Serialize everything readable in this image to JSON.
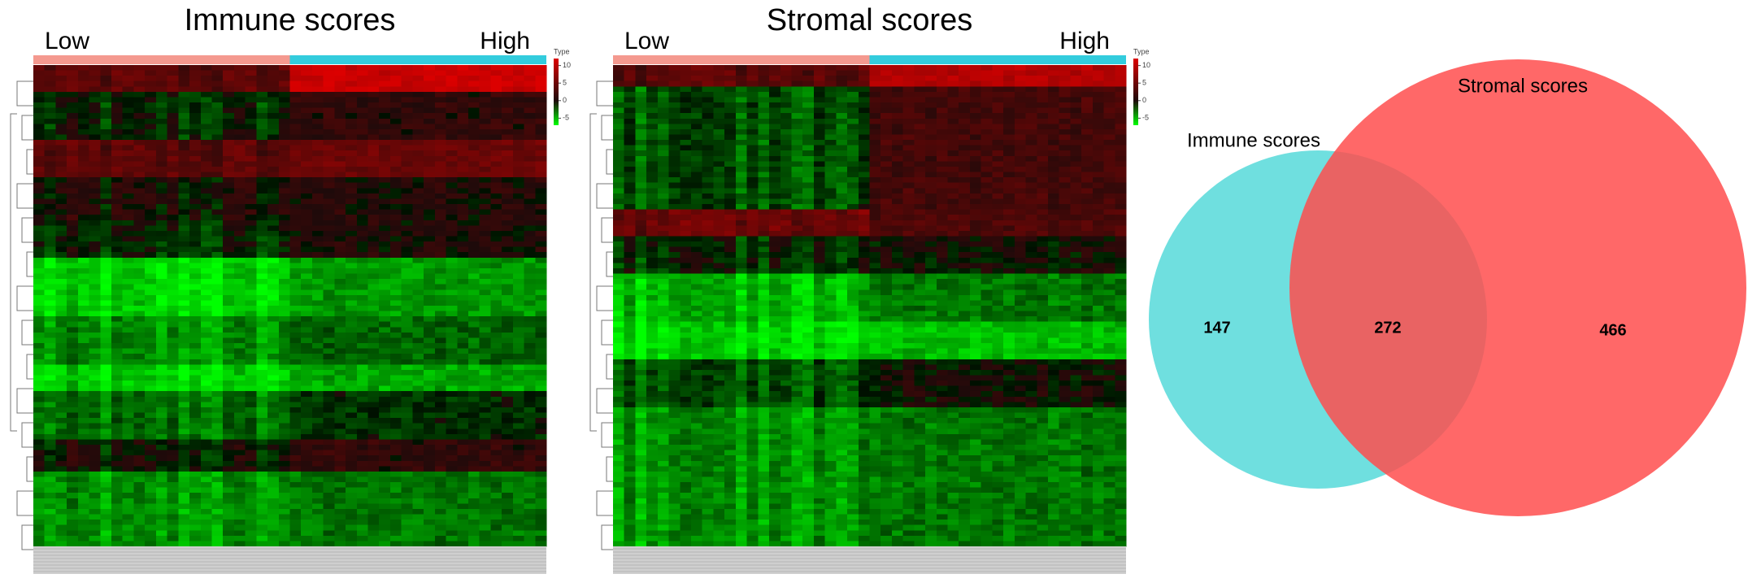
{
  "chart_data": [
    {
      "type": "heatmap",
      "title": "Immune scores",
      "groups": [
        {
          "name": "Low",
          "color": "#f4998f"
        },
        {
          "name": "High",
          "color": "#33ccdd"
        }
      ],
      "colorbar_label": "Type",
      "colorbar_lim": [
        -7,
        12
      ],
      "colorbar_ticks": [
        10,
        5,
        0,
        -5
      ]
    },
    {
      "type": "heatmap",
      "title": "Stromal scores",
      "groups": [
        {
          "name": "Low",
          "color": "#f4998f"
        },
        {
          "name": "High",
          "color": "#33ccdd"
        }
      ],
      "colorbar_label": "Type",
      "colorbar_lim": [
        -7,
        12
      ],
      "colorbar_ticks": [
        10,
        5,
        0,
        -5
      ]
    },
    {
      "type": "venn",
      "sets": [
        {
          "name": "Immune scores",
          "color": "#5fdcdc",
          "only": 147
        },
        {
          "name": "Stromal scores",
          "color": "#ff4d4d",
          "only": 466
        }
      ],
      "intersection": 272
    }
  ]
}
